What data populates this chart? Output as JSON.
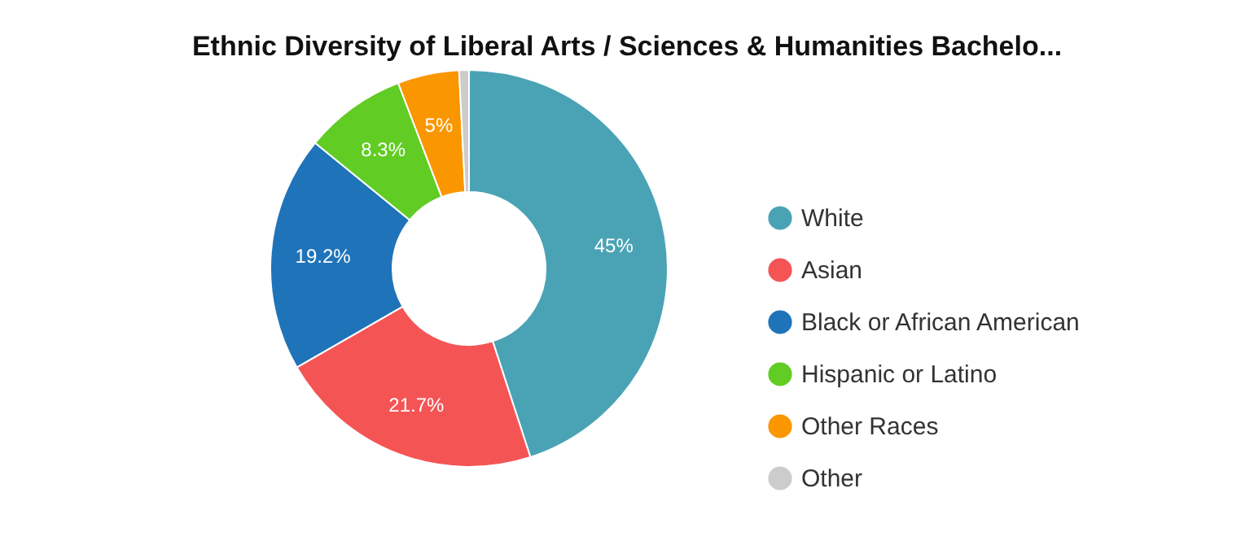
{
  "chart_data": {
    "type": "donut",
    "title": "Ethnic Diversity of Liberal Arts / Sciences & Humanities Bachelo...",
    "categories": [
      "White",
      "Asian",
      "Black or African American",
      "Hispanic or Latino",
      "Other Races",
      "Other"
    ],
    "values": [
      45,
      21.7,
      19.2,
      8.3,
      5,
      0.8
    ],
    "colors": [
      "#4aa3b5",
      "#f55455",
      "#1f73b9",
      "#61cc23",
      "#fa9600",
      "#cccccc"
    ],
    "value_labels": [
      "45%",
      "21.7%",
      "19.2%",
      "8.3%",
      "5%",
      null
    ],
    "legend": "right"
  }
}
